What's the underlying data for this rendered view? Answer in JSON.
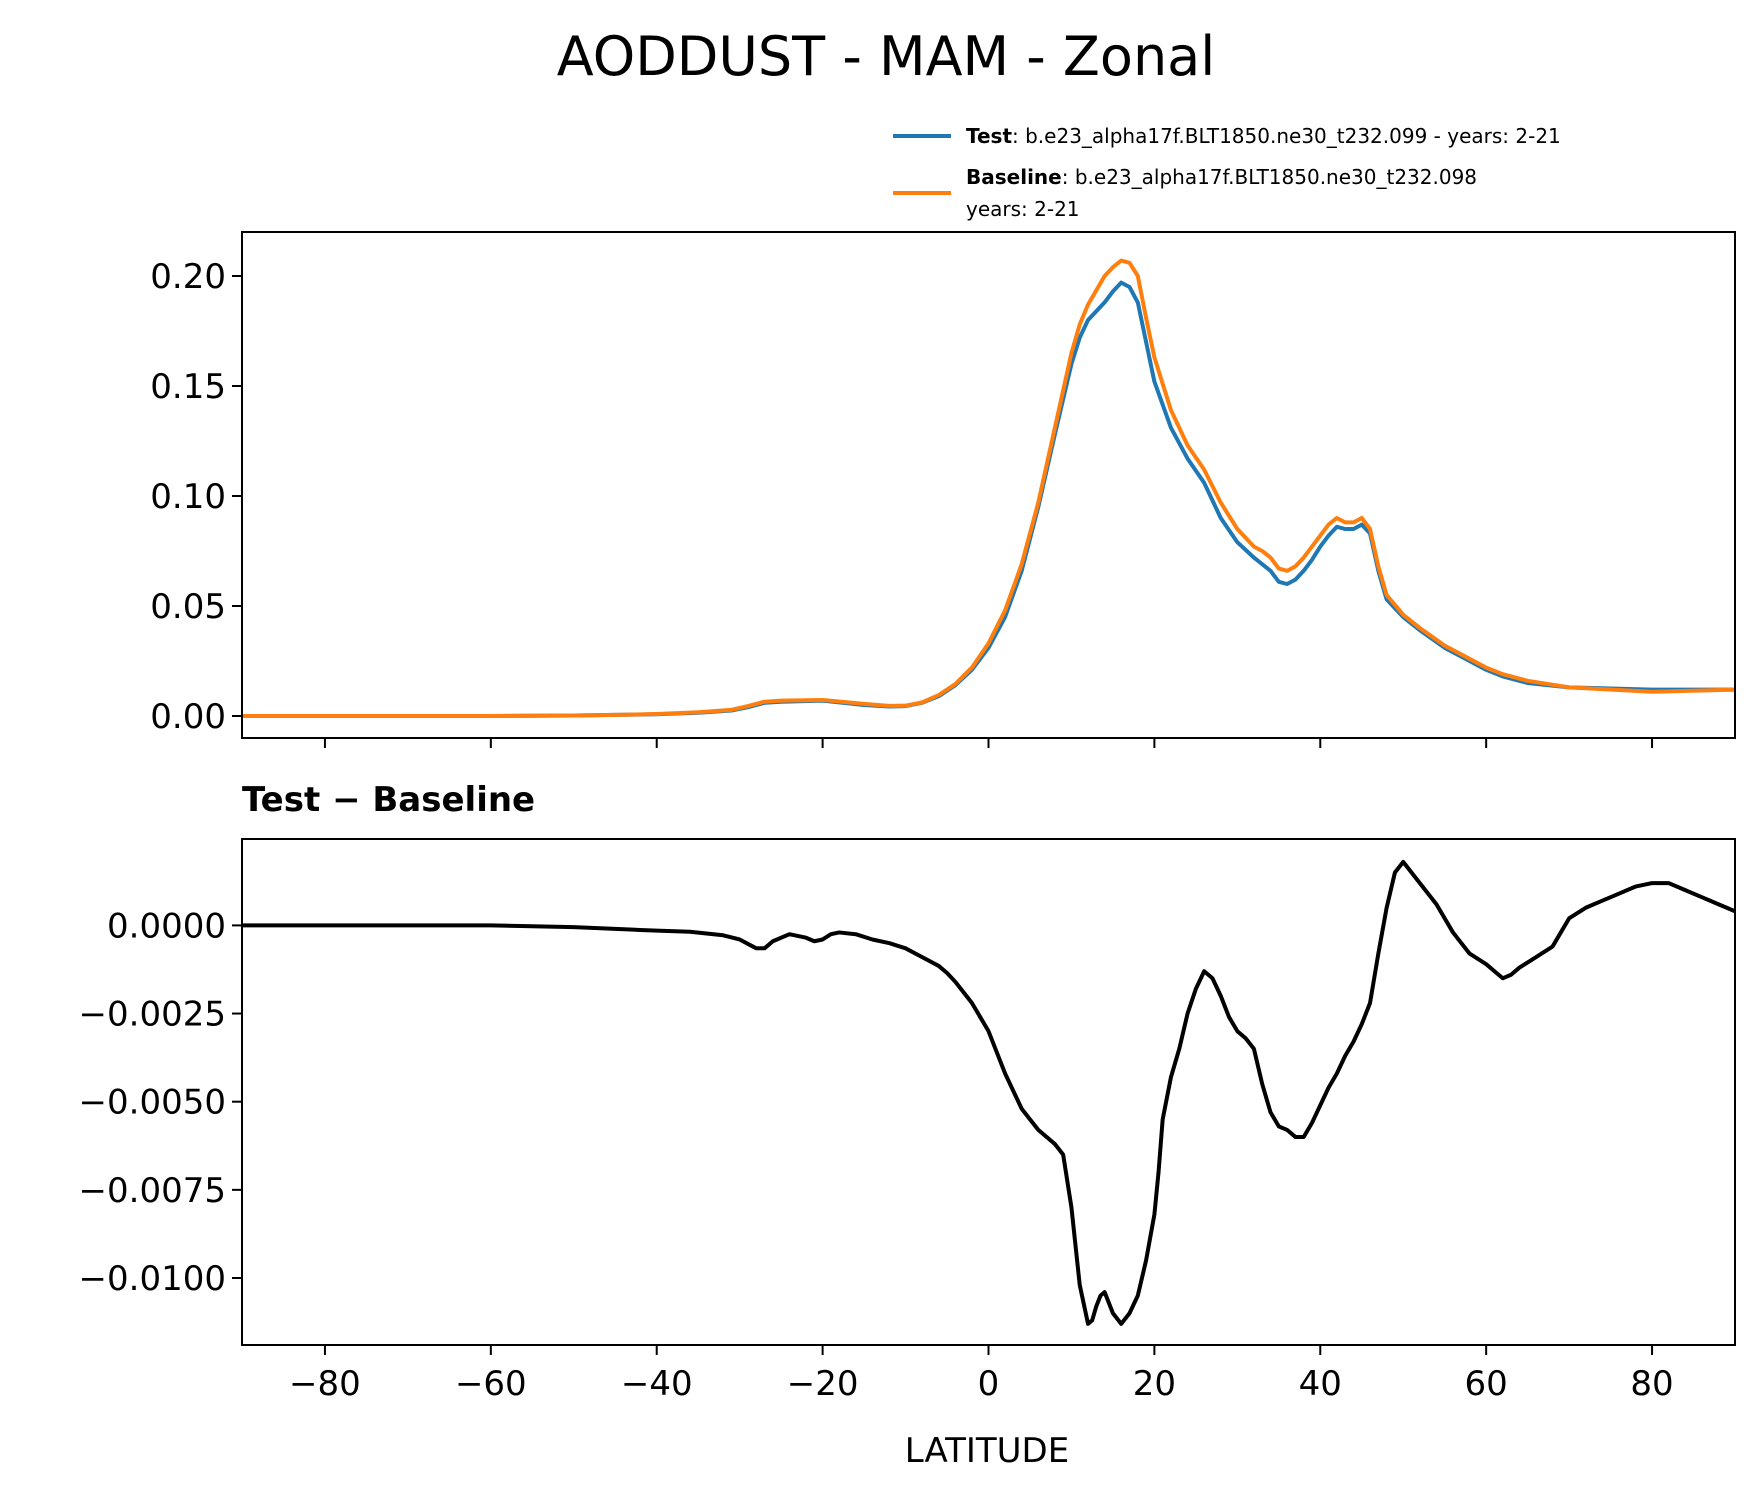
{
  "chart_data": [
    {
      "type": "line",
      "title": "AODDUST - MAM - Zonal",
      "xlabel": "",
      "ylabel": "",
      "xlim": [
        -90,
        90
      ],
      "ylim": [
        -0.01,
        0.22
      ],
      "x_ticks": [
        -80,
        -60,
        -40,
        -20,
        0,
        20,
        40,
        60,
        80
      ],
      "y_ticks": [
        0.0,
        0.05,
        0.1,
        0.15,
        0.2
      ],
      "y_tick_labels": [
        "0.00",
        "0.05",
        "0.10",
        "0.15",
        "0.20"
      ],
      "legend": {
        "position": "above-right",
        "entries": [
          {
            "name": "Test",
            "text": ": b.e23_alpha17f.BLT1850.ne30_t232.099 - years: 2-21",
            "color": "#1f77b4"
          },
          {
            "name": "Baseline",
            "text": ": b.e23_alpha17f.BLT1850.ne30_t232.098",
            "text2": "years: 2-21",
            "color": "#ff7f0e"
          }
        ]
      },
      "series": [
        {
          "name": "Test",
          "color": "#1f77b4",
          "x": [
            -90,
            -80,
            -60,
            -50,
            -45,
            -40,
            -35,
            -31,
            -29,
            -27,
            -25,
            -20,
            -15,
            -12,
            -10,
            -8,
            -6,
            -4,
            -2,
            0,
            2,
            4,
            6,
            8,
            10,
            11,
            12,
            14,
            15,
            16,
            17,
            18,
            19,
            20,
            22,
            24,
            26,
            28,
            30,
            32,
            33,
            34,
            35,
            36,
            37,
            38,
            39,
            40,
            41,
            42,
            43,
            44,
            45,
            46,
            47,
            48,
            50,
            52,
            55,
            58,
            60,
            62,
            65,
            70,
            80,
            90
          ],
          "values": [
            0.0,
            0.0,
            0.0,
            0.0002,
            0.0005,
            0.0008,
            0.0015,
            0.0025,
            0.004,
            0.006,
            0.0065,
            0.007,
            0.005,
            0.0043,
            0.0045,
            0.006,
            0.009,
            0.014,
            0.021,
            0.031,
            0.045,
            0.066,
            0.095,
            0.128,
            0.16,
            0.172,
            0.18,
            0.188,
            0.193,
            0.197,
            0.195,
            0.188,
            0.17,
            0.152,
            0.131,
            0.117,
            0.106,
            0.09,
            0.079,
            0.072,
            0.069,
            0.066,
            0.061,
            0.06,
            0.062,
            0.066,
            0.071,
            0.077,
            0.082,
            0.086,
            0.085,
            0.085,
            0.087,
            0.083,
            0.066,
            0.053,
            0.045,
            0.039,
            0.031,
            0.025,
            0.021,
            0.018,
            0.015,
            0.013,
            0.012,
            0.012
          ]
        },
        {
          "name": "Baseline",
          "color": "#ff7f0e",
          "x": [
            -90,
            -80,
            -60,
            -50,
            -45,
            -40,
            -35,
            -31,
            -29,
            -27,
            -25,
            -20,
            -15,
            -12,
            -10,
            -8,
            -6,
            -4,
            -2,
            0,
            2,
            4,
            6,
            8,
            10,
            11,
            12,
            14,
            15,
            16,
            17,
            18,
            19,
            20,
            22,
            24,
            26,
            28,
            30,
            32,
            33,
            34,
            35,
            36,
            37,
            38,
            39,
            40,
            41,
            42,
            43,
            44,
            45,
            46,
            47,
            48,
            50,
            52,
            55,
            58,
            60,
            62,
            65,
            70,
            80,
            90
          ],
          "values": [
            0.0,
            0.0,
            0.0,
            0.0002,
            0.0005,
            0.0009,
            0.0017,
            0.0028,
            0.0045,
            0.0065,
            0.007,
            0.0073,
            0.0055,
            0.0046,
            0.0047,
            0.0062,
            0.0095,
            0.0145,
            0.022,
            0.033,
            0.048,
            0.069,
            0.097,
            0.131,
            0.165,
            0.178,
            0.187,
            0.2,
            0.204,
            0.207,
            0.206,
            0.2,
            0.181,
            0.163,
            0.139,
            0.123,
            0.112,
            0.097,
            0.085,
            0.077,
            0.075,
            0.072,
            0.067,
            0.066,
            0.068,
            0.072,
            0.077,
            0.082,
            0.087,
            0.09,
            0.088,
            0.088,
            0.09,
            0.085,
            0.068,
            0.055,
            0.046,
            0.04,
            0.032,
            0.026,
            0.022,
            0.019,
            0.016,
            0.013,
            0.011,
            0.012
          ]
        }
      ]
    },
    {
      "type": "line",
      "title": "Test − Baseline",
      "xlabel": "LATITUDE",
      "ylabel": "",
      "xlim": [
        -90,
        90
      ],
      "ylim": [
        -0.0119,
        0.00245
      ],
      "x_ticks": [
        -80,
        -60,
        -40,
        -20,
        0,
        20,
        40,
        60,
        80
      ],
      "x_tick_labels": [
        "−80",
        "−60",
        "−40",
        "−20",
        "0",
        "20",
        "40",
        "60",
        "80"
      ],
      "y_ticks": [
        0.0,
        -0.0025,
        -0.005,
        -0.0075,
        -0.01
      ],
      "y_tick_labels": [
        "0.0000",
        "−0.0025",
        "−0.0050",
        "−0.0075",
        "−0.0100"
      ],
      "series": [
        {
          "name": "Test − Baseline",
          "color": "#000000",
          "x": [
            -90,
            -60,
            -50,
            -45,
            -42,
            -40,
            -36,
            -32,
            -30,
            -28,
            -27,
            -26,
            -24,
            -22,
            -21,
            -20,
            -19,
            -18,
            -16,
            -14,
            -12,
            -10,
            -8,
            -6,
            -5,
            -4,
            -3,
            -2,
            -1,
            0,
            1,
            2,
            3,
            4,
            5,
            6,
            7,
            8,
            9,
            10,
            11,
            12,
            12.5,
            13,
            13.5,
            14,
            15,
            16,
            17,
            18,
            19,
            20,
            20.5,
            21,
            22,
            23,
            24,
            25,
            26,
            27,
            28,
            29,
            30,
            31,
            32,
            33,
            34,
            35,
            36,
            37,
            38,
            39,
            40,
            41,
            42,
            43,
            44,
            45,
            46,
            47,
            48,
            49,
            50,
            52,
            54,
            56,
            58,
            60,
            61,
            62,
            63,
            64,
            66,
            68,
            69,
            70,
            72,
            74,
            76,
            78,
            80,
            82,
            84,
            86,
            88,
            89,
            90
          ],
          "values": [
            0.0,
            0.0,
            -5e-05,
            -0.0001,
            -0.00013,
            -0.00015,
            -0.00018,
            -0.00028,
            -0.0004,
            -0.00065,
            -0.00065,
            -0.00045,
            -0.00025,
            -0.00035,
            -0.00045,
            -0.0004,
            -0.00025,
            -0.0002,
            -0.00025,
            -0.0004,
            -0.0005,
            -0.00065,
            -0.0009,
            -0.00115,
            -0.00135,
            -0.0016,
            -0.0019,
            -0.0022,
            -0.0026,
            -0.003,
            -0.0036,
            -0.0042,
            -0.0047,
            -0.0052,
            -0.0055,
            -0.0058,
            -0.006,
            -0.0062,
            -0.0065,
            -0.008,
            -0.0102,
            -0.0113,
            -0.0112,
            -0.0108,
            -0.0105,
            -0.0104,
            -0.011,
            -0.0113,
            -0.011,
            -0.0105,
            -0.0095,
            -0.0082,
            -0.007,
            -0.0055,
            -0.0043,
            -0.0035,
            -0.0025,
            -0.0018,
            -0.0013,
            -0.0015,
            -0.002,
            -0.0026,
            -0.003,
            -0.0032,
            -0.0035,
            -0.0045,
            -0.0053,
            -0.0057,
            -0.0058,
            -0.006,
            -0.006,
            -0.0056,
            -0.0051,
            -0.0046,
            -0.0042,
            -0.0037,
            -0.0033,
            -0.0028,
            -0.0022,
            -0.0008,
            0.0005,
            0.0015,
            0.0018,
            0.0012,
            0.0006,
            -0.0002,
            -0.0008,
            -0.0011,
            -0.0013,
            -0.0015,
            -0.0014,
            -0.0012,
            -0.0009,
            -0.0006,
            -0.0002,
            0.0002,
            0.0005,
            0.0007,
            0.0009,
            0.0011,
            0.0012,
            0.0012,
            0.001,
            0.0008,
            0.0006,
            0.0005,
            0.0004
          ]
        }
      ]
    }
  ]
}
